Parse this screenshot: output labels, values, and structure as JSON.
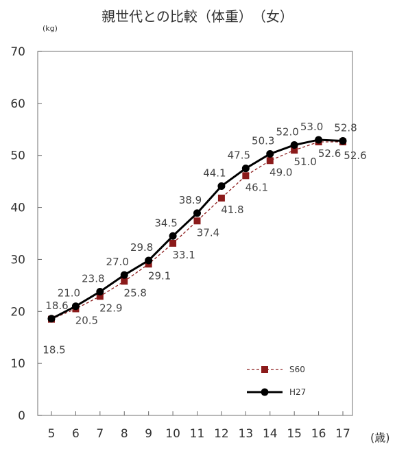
{
  "chart_data": {
    "type": "line",
    "title": "親世代との比較（体重）　（女）",
    "ylabel": "(kg)",
    "xlabel": "(歳)",
    "ylim": [
      0,
      70
    ],
    "yticks": [
      0,
      10,
      20,
      30,
      40,
      50,
      60,
      70
    ],
    "categories": [
      "5",
      "6",
      "7",
      "8",
      "9",
      "10",
      "11",
      "12",
      "13",
      "14",
      "15",
      "16",
      "17"
    ],
    "series": [
      {
        "name": "S60",
        "color": "#8b1a1a",
        "style": "dashed",
        "marker": "square",
        "values": [
          18.5,
          20.5,
          22.9,
          25.8,
          29.1,
          33.1,
          37.4,
          41.8,
          46.1,
          49.0,
          51.0,
          52.6,
          52.6
        ]
      },
      {
        "name": "H27",
        "color": "#000000",
        "style": "solid",
        "marker": "circle",
        "values": [
          18.6,
          21.0,
          23.8,
          27.0,
          29.8,
          34.5,
          38.9,
          44.1,
          47.5,
          50.3,
          52.0,
          53.0,
          52.8
        ]
      }
    ],
    "legend": "bottom-right",
    "grid": false
  }
}
